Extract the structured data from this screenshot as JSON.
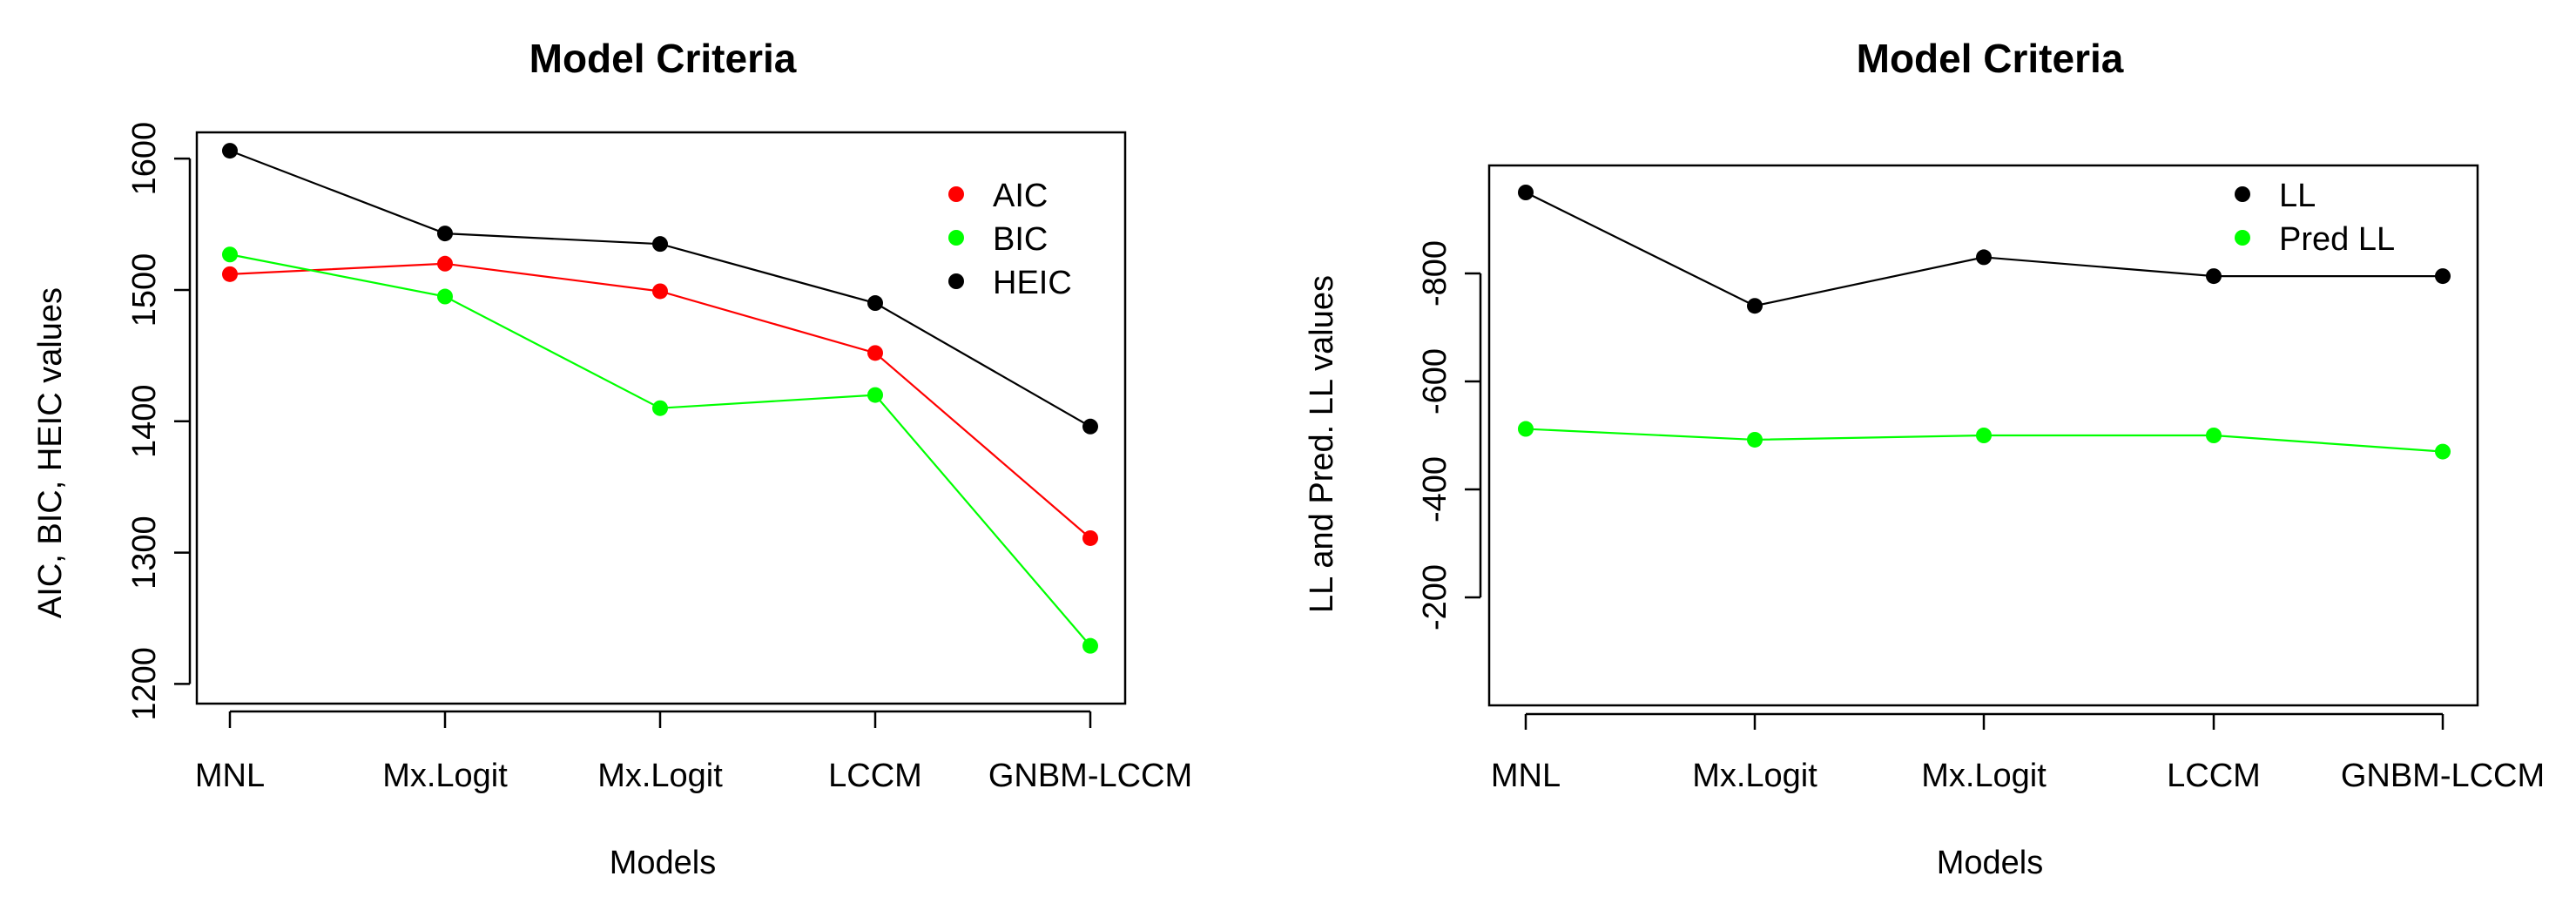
{
  "chart_data": [
    {
      "type": "line",
      "title": "Model Criteria",
      "xlabel": "Models",
      "ylabel": "AIC, BIC, HEIC values",
      "categories": [
        "MNL",
        "Mx.Logit",
        "Mx.Logit",
        "LCCM",
        "GNBM-LCCM"
      ],
      "ylim": [
        1185,
        1620
      ],
      "yticks": [
        1200,
        1300,
        1400,
        1500,
        1600
      ],
      "legend_position": "top-right",
      "series": [
        {
          "name": "AIC",
          "color": "#ff0000",
          "values": [
            1512,
            1520,
            1499,
            1452,
            1311
          ]
        },
        {
          "name": "BIC",
          "color": "#00ff00",
          "values": [
            1527,
            1495,
            1410,
            1420,
            1229
          ]
        },
        {
          "name": "HEIC",
          "color": "#000000",
          "values": [
            1606,
            1543,
            1535,
            1490,
            1396
          ]
        }
      ]
    },
    {
      "type": "line",
      "title": "Model Criteria",
      "xlabel": "Models",
      "ylabel": "LL and Pred. LL values",
      "categories": [
        "MNL",
        "Mx.Logit",
        "Mx.Logit",
        "LCCM",
        "GNBM-LCCM"
      ],
      "ylim": [
        -1000,
        0
      ],
      "yticks": [
        -200,
        -400,
        -600,
        -800
      ],
      "y_reversed": true,
      "legend_position": "top-right",
      "series": [
        {
          "name": "LL",
          "color": "#000000",
          "values": [
            -950,
            -740,
            -830,
            -795,
            -795
          ]
        },
        {
          "name": "Pred LL",
          "color": "#00ff00",
          "values": [
            -512,
            -492,
            -500,
            -500,
            -470
          ]
        }
      ]
    }
  ]
}
